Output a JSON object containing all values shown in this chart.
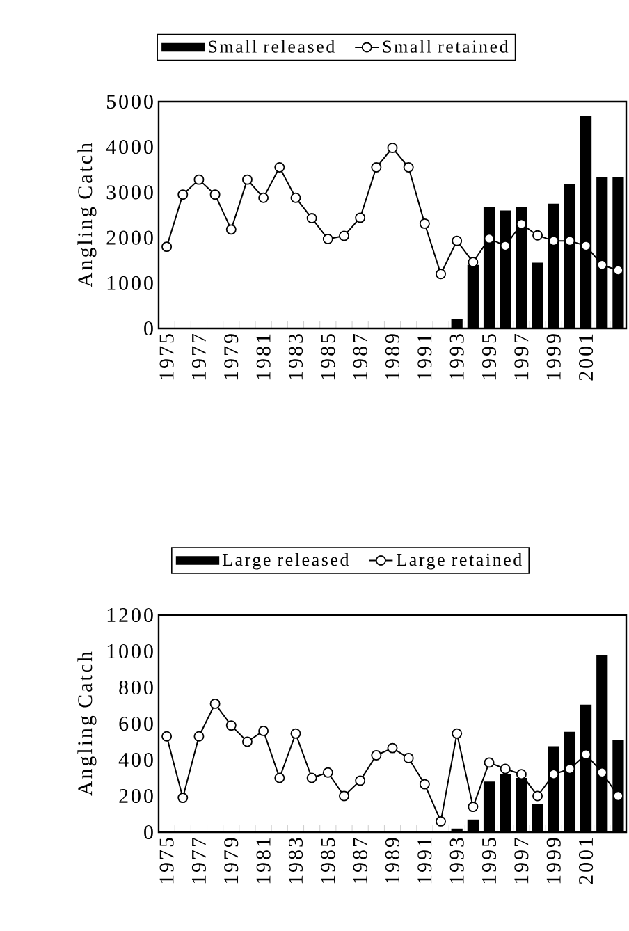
{
  "chart_data": [
    {
      "type": "bar",
      "categories": [
        "1975",
        null,
        "1977",
        null,
        "1979",
        null,
        "1981",
        null,
        "1983",
        null,
        "1985",
        null,
        "1987",
        null,
        "1989",
        null,
        "1991",
        null,
        "1993",
        null,
        "1995",
        null,
        "1997",
        null,
        "1999",
        null,
        "2001",
        null,
        null
      ],
      "ylabel": "Angling Catch",
      "ylim": [
        0,
        5000
      ],
      "yticks": [
        0,
        1000,
        2000,
        3000,
        4000,
        5000
      ],
      "legend": "top",
      "grid": false,
      "marker": "circle",
      "series": [
        {
          "name": "Small released",
          "color": "#000000",
          "values": [
            null,
            null,
            null,
            null,
            null,
            null,
            null,
            null,
            null,
            null,
            null,
            null,
            null,
            null,
            null,
            null,
            null,
            null,
            200,
            1400,
            2670,
            2600,
            2670,
            1450,
            2750,
            3190,
            4680,
            3330,
            3330
          ]
        },
        {
          "name": "Small retained",
          "type": "line",
          "color": "#000000",
          "values": [
            1800,
            2950,
            3280,
            2950,
            2180,
            3280,
            2880,
            3550,
            2880,
            2430,
            1970,
            2040,
            2440,
            3550,
            3980,
            3550,
            2310,
            1200,
            1930,
            1460,
            1980,
            1820,
            2300,
            2050,
            1930,
            1930,
            1820,
            1400,
            1280
          ]
        }
      ]
    },
    {
      "type": "bar",
      "categories": [
        "1975",
        null,
        "1977",
        null,
        "1979",
        null,
        "1981",
        null,
        "1983",
        null,
        "1985",
        null,
        "1987",
        null,
        "1989",
        null,
        "1991",
        null,
        "1993",
        null,
        "1995",
        null,
        "1997",
        null,
        "1999",
        null,
        "2001",
        null,
        null
      ],
      "ylabel": "Angling Catch",
      "ylim": [
        0,
        1200
      ],
      "yticks": [
        0,
        200,
        400,
        600,
        800,
        1000,
        1200
      ],
      "legend": "top",
      "grid": false,
      "marker": "circle",
      "series": [
        {
          "name": "Large released",
          "color": "#000000",
          "values": [
            null,
            null,
            null,
            null,
            null,
            null,
            null,
            null,
            null,
            null,
            null,
            null,
            null,
            null,
            null,
            null,
            null,
            null,
            20,
            70,
            280,
            320,
            300,
            155,
            475,
            555,
            705,
            980,
            510
          ]
        },
        {
          "name": "Large retained",
          "type": "line",
          "color": "#000000",
          "values": [
            530,
            190,
            530,
            710,
            590,
            500,
            560,
            300,
            545,
            300,
            330,
            200,
            285,
            425,
            465,
            410,
            265,
            60,
            545,
            140,
            385,
            350,
            320,
            200,
            320,
            350,
            430,
            330,
            200
          ]
        }
      ]
    }
  ]
}
